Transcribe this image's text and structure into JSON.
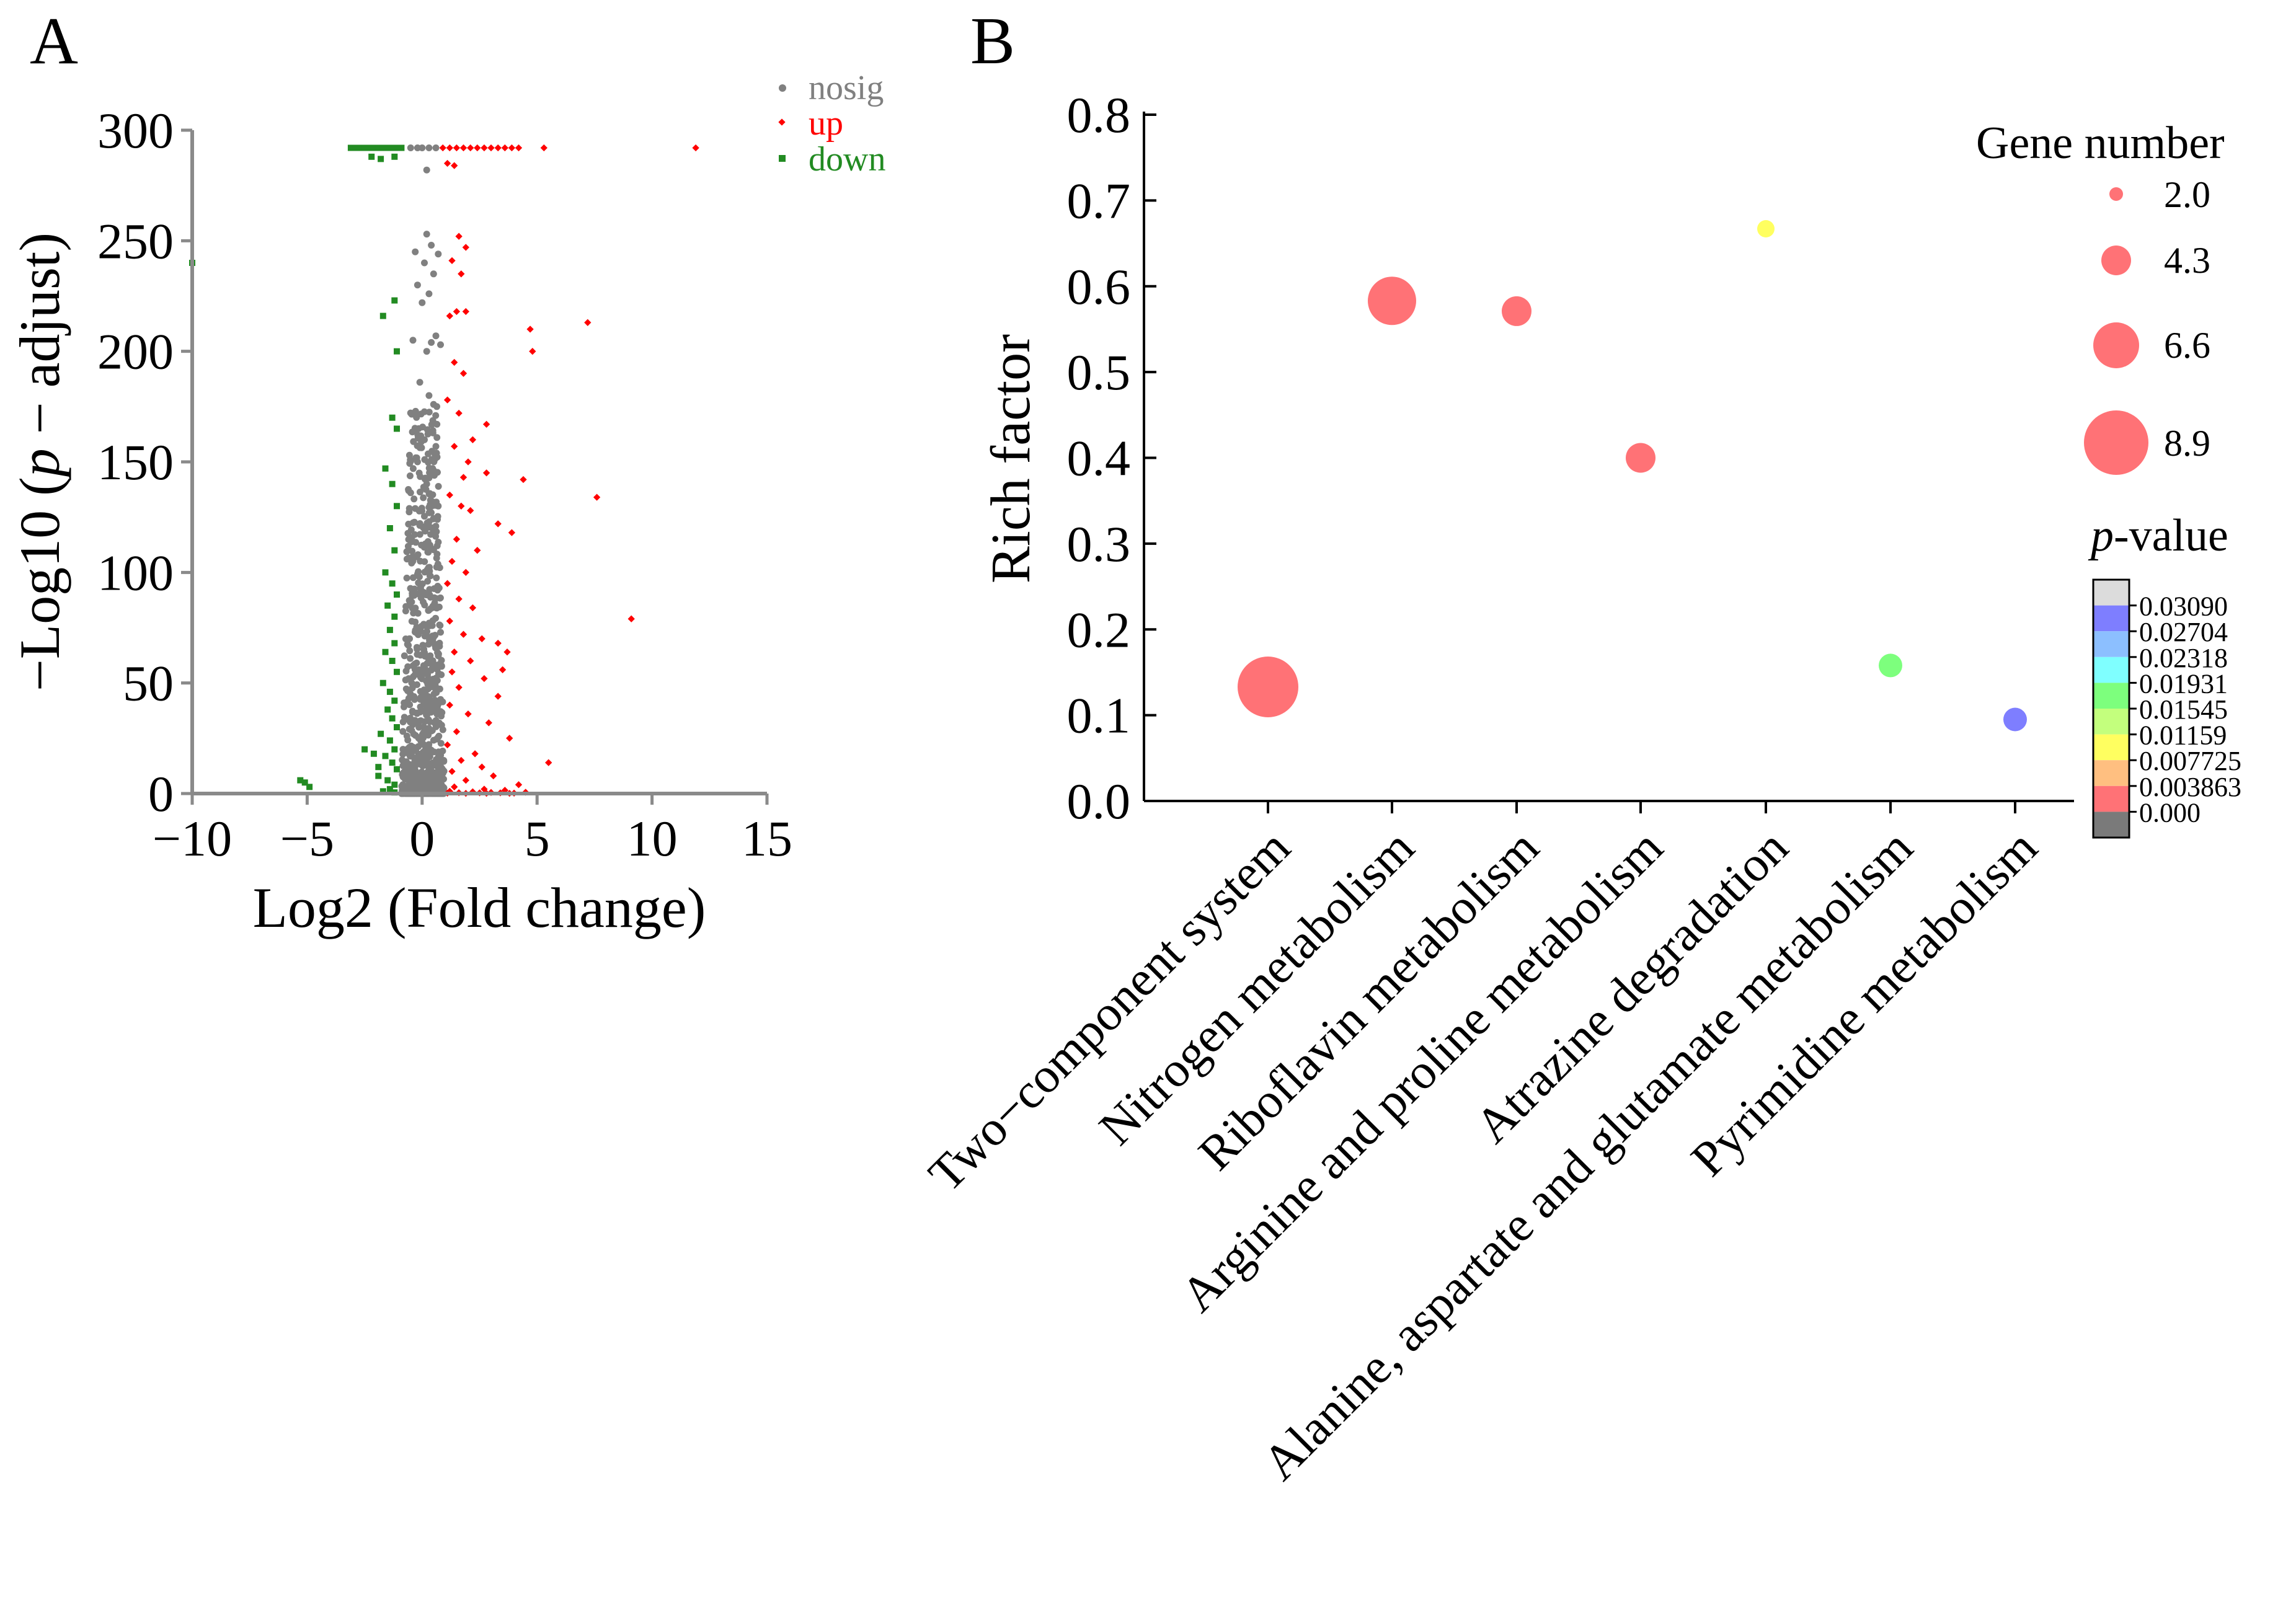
{
  "panels": {
    "a": "A",
    "b": "B"
  },
  "chart_data": [
    {
      "type": "scatter",
      "panel": "A",
      "title": "",
      "xlabel": "Log2 (Fold change)",
      "ylabel_parts": [
        "−Log10 (",
        "p",
        " − adjust)"
      ],
      "xlim": [
        -10,
        15
      ],
      "ylim": [
        0,
        300
      ],
      "xticks": [
        -10,
        -5,
        0,
        5,
        10,
        15
      ],
      "xtick_labels": [
        "−10",
        "−5",
        "0",
        "5",
        "10",
        "15"
      ],
      "yticks": [
        0,
        50,
        100,
        150,
        200,
        250,
        300
      ],
      "ytick_labels": [
        "0",
        "50",
        "100",
        "150",
        "200",
        "250",
        "300"
      ],
      "legend_position": "top-right",
      "legend": [
        {
          "name": "nosig",
          "color": "#808080",
          "marker": "circle"
        },
        {
          "name": "up",
          "color": "#ff0000",
          "marker": "diamond"
        },
        {
          "name": "down",
          "color": "#228b22",
          "marker": "square"
        }
      ],
      "series": [
        {
          "name": "down",
          "color": "#228b22",
          "points": [
            [
              -3.1,
              292
            ],
            [
              -2.9,
              292
            ],
            [
              -2.7,
              292
            ],
            [
              -2.5,
              292
            ],
            [
              -2.3,
              292
            ],
            [
              -2.1,
              292
            ],
            [
              -1.9,
              292
            ],
            [
              -1.7,
              292
            ],
            [
              -1.5,
              292
            ],
            [
              -1.3,
              292
            ],
            [
              -1.1,
              292
            ],
            [
              -0.9,
              292
            ],
            [
              -2.2,
              288
            ],
            [
              -1.8,
              287
            ],
            [
              -1.2,
              288
            ],
            [
              -10,
              240
            ],
            [
              -1.7,
              216
            ],
            [
              -1.2,
              223
            ],
            [
              -1.1,
              200
            ],
            [
              -1.3,
              170
            ],
            [
              -1.1,
              165
            ],
            [
              -1.6,
              147
            ],
            [
              -1.3,
              140
            ],
            [
              -1.1,
              130
            ],
            [
              -1.4,
              120
            ],
            [
              -1.2,
              110
            ],
            [
              -1.6,
              100
            ],
            [
              -1.3,
              95
            ],
            [
              -1.1,
              90
            ],
            [
              -1.5,
              85
            ],
            [
              -1.2,
              80
            ],
            [
              -1.4,
              74
            ],
            [
              -1.2,
              68
            ],
            [
              -1.6,
              64
            ],
            [
              -1.3,
              60
            ],
            [
              -1.1,
              55
            ],
            [
              -1.7,
              50
            ],
            [
              -1.4,
              46
            ],
            [
              -1.2,
              42
            ],
            [
              -1.5,
              38
            ],
            [
              -1.3,
              34
            ],
            [
              -1.1,
              30
            ],
            [
              -1.8,
              27
            ],
            [
              -1.4,
              24
            ],
            [
              -1.2,
              20
            ],
            [
              -1.6,
              17
            ],
            [
              -1.3,
              14
            ],
            [
              -1.1,
              11
            ],
            [
              -1.9,
              8
            ],
            [
              -1.5,
              6
            ],
            [
              -1.2,
              4
            ],
            [
              -1.4,
              2
            ],
            [
              -1.7,
              1
            ],
            [
              -1.2,
              0.5
            ],
            [
              -5.3,
              6
            ],
            [
              -5.1,
              5
            ],
            [
              -4.9,
              3
            ],
            [
              -2.5,
              20
            ],
            [
              -2.1,
              18
            ],
            [
              -1.9,
              12
            ]
          ]
        },
        {
          "name": "up",
          "color": "#ff0000",
          "points": [
            [
              0.9,
              292
            ],
            [
              1.2,
              292
            ],
            [
              1.5,
              292
            ],
            [
              1.8,
              292
            ],
            [
              2.1,
              292
            ],
            [
              2.4,
              292
            ],
            [
              2.7,
              292
            ],
            [
              3.0,
              292
            ],
            [
              3.3,
              292
            ],
            [
              3.6,
              292
            ],
            [
              3.9,
              292
            ],
            [
              4.2,
              292
            ],
            [
              5.3,
              292
            ],
            [
              11.9,
              292
            ],
            [
              1.1,
              285
            ],
            [
              1.4,
              284
            ],
            [
              1.6,
              252
            ],
            [
              1.9,
              247
            ],
            [
              1.3,
              241
            ],
            [
              1.7,
              235
            ],
            [
              1.2,
              216
            ],
            [
              1.5,
              218
            ],
            [
              1.9,
              218
            ],
            [
              4.7,
              210
            ],
            [
              4.8,
              200
            ],
            [
              7.2,
              213
            ],
            [
              1.4,
              195
            ],
            [
              1.8,
              190
            ],
            [
              1.1,
              178
            ],
            [
              1.6,
              172
            ],
            [
              2.2,
              160
            ],
            [
              2.8,
              167
            ],
            [
              1.4,
              157
            ],
            [
              2.0,
              150
            ],
            [
              1.8,
              143
            ],
            [
              2.8,
              145
            ],
            [
              4.4,
              142
            ],
            [
              7.6,
              134
            ],
            [
              1.2,
              135
            ],
            [
              1.7,
              130
            ],
            [
              2.1,
              128
            ],
            [
              3.3,
              122
            ],
            [
              3.9,
              118
            ],
            [
              1.5,
              115
            ],
            [
              2.4,
              110
            ],
            [
              1.3,
              105
            ],
            [
              1.9,
              100
            ],
            [
              1.1,
              95
            ],
            [
              1.6,
              88
            ],
            [
              2.2,
              84
            ],
            [
              9.1,
              79
            ],
            [
              1.2,
              78
            ],
            [
              1.8,
              72
            ],
            [
              2.6,
              70
            ],
            [
              3.3,
              68
            ],
            [
              3.7,
              64
            ],
            [
              3.5,
              56
            ],
            [
              1.4,
              64
            ],
            [
              2.1,
              60
            ],
            [
              1.3,
              55
            ],
            [
              2.7,
              52
            ],
            [
              1.6,
              48
            ],
            [
              3.3,
              44
            ],
            [
              1.2,
              40
            ],
            [
              2.0,
              36
            ],
            [
              2.9,
              32
            ],
            [
              1.5,
              28
            ],
            [
              3.8,
              25
            ],
            [
              1.1,
              22
            ],
            [
              2.3,
              18
            ],
            [
              5.5,
              14
            ],
            [
              1.7,
              15
            ],
            [
              2.6,
              12
            ],
            [
              1.3,
              10
            ],
            [
              3.1,
              8
            ],
            [
              1.9,
              6
            ],
            [
              4.2,
              4
            ],
            [
              1.4,
              3
            ],
            [
              2.7,
              2
            ],
            [
              3.6,
              1.5
            ],
            [
              1.2,
              1
            ],
            [
              2.2,
              0.8
            ],
            [
              4.5,
              0.6
            ],
            [
              3.0,
              0.5
            ],
            [
              1.6,
              0.4
            ],
            [
              2.5,
              0.3
            ],
            [
              3.4,
              0.3
            ],
            [
              4.0,
              0.2
            ],
            [
              1.1,
              0.2
            ],
            [
              1.9,
              0.1
            ],
            [
              2.8,
              0.1
            ],
            [
              3.8,
              0.1
            ]
          ]
        }
      ]
    },
    {
      "type": "bubble",
      "panel": "B",
      "title": "",
      "xlabel": "",
      "ylabel": "Rich factor",
      "ylim": [
        0,
        0.8
      ],
      "yticks": [
        0.0,
        0.1,
        0.2,
        0.3,
        0.4,
        0.5,
        0.6,
        0.7,
        0.8
      ],
      "ytick_labels": [
        "0.0",
        "0.1",
        "0.2",
        "0.3",
        "0.4",
        "0.5",
        "0.6",
        "0.7",
        "0.8"
      ],
      "categories": [
        "Two−component system",
        "Nitrogen metabolism",
        "Riboflavin metabolism",
        "Arginine and proline metabolism",
        "Atrazine degradation",
        "Alanine, aspartate and glutamate metabolism",
        "Pyrimidine metabolism"
      ],
      "rich_factor": [
        0.133,
        0.583,
        0.571,
        0.4,
        0.667,
        0.158,
        0.095
      ],
      "gene_number": [
        9,
        7,
        4,
        4,
        2,
        3,
        3
      ],
      "p_value": [
        0.0005,
        0.001,
        0.002,
        0.003,
        0.009,
        0.016,
        0.027
      ],
      "colors": [
        "#ff7276",
        "#ff7276",
        "#ff7276",
        "#ff7276",
        "#ffff60",
        "#7dff7d",
        "#7e7eff"
      ],
      "size_legend_title": "Gene number",
      "size_legend": [
        "2.0",
        "4.3",
        "6.6",
        "8.9"
      ],
      "color_legend_title_parts": [
        "p",
        "-value"
      ],
      "color_legend_labels": [
        "0.03090",
        "0.02704",
        "0.02318",
        "0.01931",
        "0.01545",
        "0.01159",
        "0.007725",
        "0.003863",
        "0.000"
      ],
      "color_legend_colors": [
        "#dcdcdc",
        "#7e7eff",
        "#8cbfff",
        "#7fffff",
        "#7dff7d",
        "#c3ff7d",
        "#ffff60",
        "#ffbf80",
        "#ff7276",
        "#7a7a7a"
      ]
    }
  ]
}
